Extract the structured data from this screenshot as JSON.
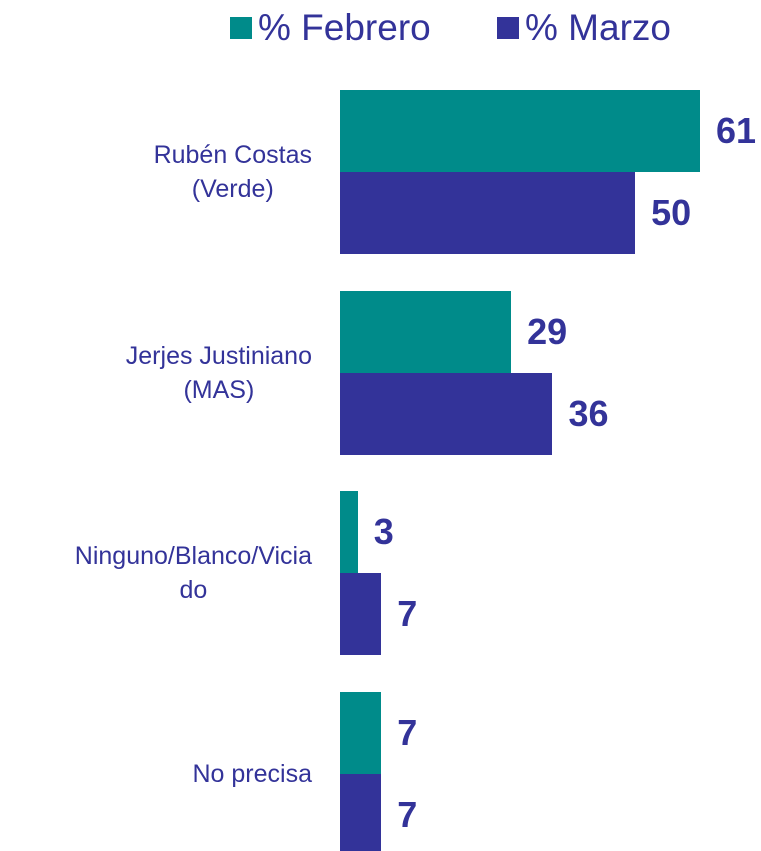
{
  "chart_data": {
    "type": "bar",
    "orientation": "horizontal",
    "categories": [
      "Rubén Costas\n(Verde)",
      "Jerjes Justiniano\n(MAS)",
      "Ninguno/Blanco/Vicia\ndo",
      "No precisa"
    ],
    "series": [
      {
        "name": "% Febrero",
        "color": "#008b8a",
        "values": [
          61,
          29,
          3,
          7
        ]
      },
      {
        "name": "% Marzo",
        "color": "#333399",
        "values": [
          50,
          36,
          7,
          7
        ]
      }
    ],
    "xlim": [
      0,
      61
    ],
    "legend": "top"
  }
}
